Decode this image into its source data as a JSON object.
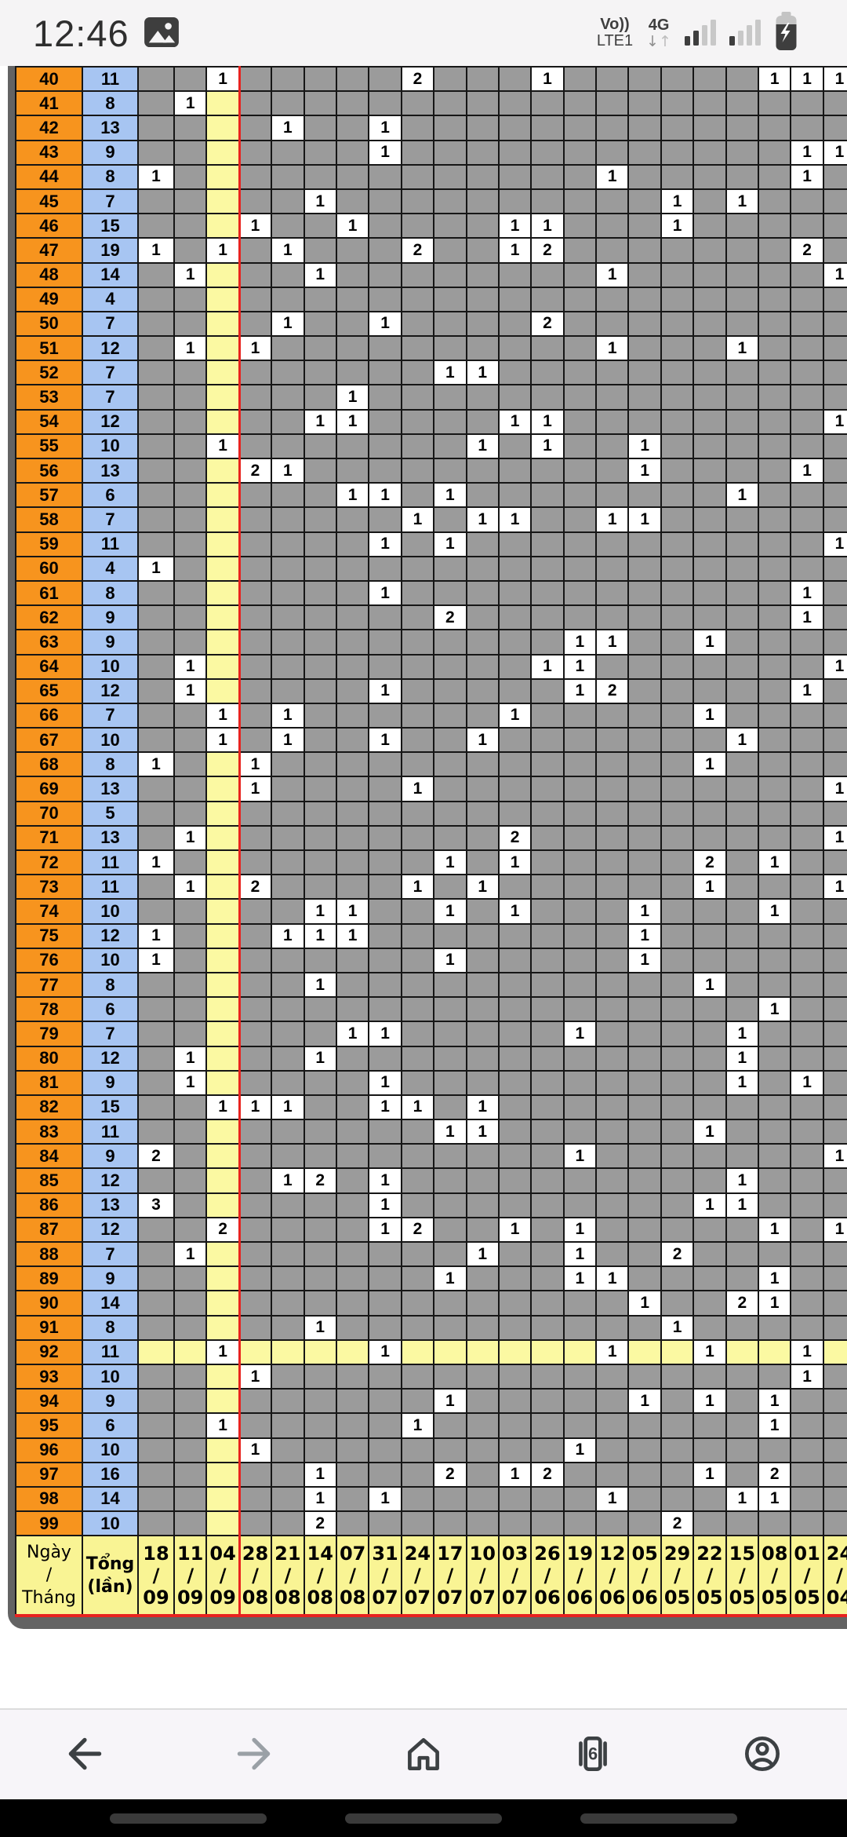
{
  "status_bar": {
    "time": "12:46",
    "carrier_line1": "Vo))",
    "carrier_line2": "LTE1",
    "network": "4G",
    "arrow_down": "↓",
    "arrow_up": "↑",
    "battery_state": "charging"
  },
  "table": {
    "highlight_row": "92",
    "highlight_col": 3,
    "colors": {
      "row_number_bg": "#f7941e",
      "total_bg": "#a7c5f2",
      "empty_bg": "#9b9b9b",
      "highlight_bg": "#fbf9a2",
      "value_bg": "#ffffff",
      "marker_line": "#e8231f",
      "frame": "#636363"
    },
    "rows": [
      {
        "n": "40",
        "total": "11",
        "cells": {
          "3": "1",
          "9": "2",
          "13": "1",
          "20": "1",
          "21": "1",
          "22": "1"
        }
      },
      {
        "n": "41",
        "total": "8",
        "cells": {
          "2": "1"
        }
      },
      {
        "n": "42",
        "total": "13",
        "cells": {
          "5": "1",
          "8": "1"
        }
      },
      {
        "n": "43",
        "total": "9",
        "cells": {
          "8": "1",
          "21": "1",
          "22": "1"
        }
      },
      {
        "n": "44",
        "total": "8",
        "cells": {
          "1": "1",
          "15": "1",
          "21": "1"
        }
      },
      {
        "n": "45",
        "total": "7",
        "cells": {
          "6": "1",
          "17": "1",
          "19": "1"
        }
      },
      {
        "n": "46",
        "total": "15",
        "cells": {
          "4": "1",
          "7": "1",
          "12": "1",
          "13": "1",
          "17": "1"
        }
      },
      {
        "n": "47",
        "total": "19",
        "cells": {
          "1": "1",
          "3": "1",
          "5": "1",
          "9": "2",
          "12": "1",
          "13": "2",
          "21": "2"
        }
      },
      {
        "n": "48",
        "total": "14",
        "cells": {
          "2": "1",
          "6": "1",
          "15": "1",
          "22": "1"
        }
      },
      {
        "n": "49",
        "total": "4",
        "cells": {}
      },
      {
        "n": "50",
        "total": "7",
        "cells": {
          "5": "1",
          "8": "1",
          "13": "2"
        }
      },
      {
        "n": "51",
        "total": "12",
        "cells": {
          "2": "1",
          "4": "1",
          "15": "1",
          "19": "1"
        }
      },
      {
        "n": "52",
        "total": "7",
        "cells": {
          "10": "1",
          "11": "1"
        }
      },
      {
        "n": "53",
        "total": "7",
        "cells": {
          "7": "1"
        }
      },
      {
        "n": "54",
        "total": "12",
        "cells": {
          "6": "1",
          "7": "1",
          "12": "1",
          "13": "1",
          "22": "1"
        }
      },
      {
        "n": "55",
        "total": "10",
        "cells": {
          "3": "1",
          "11": "1",
          "13": "1",
          "16": "1"
        }
      },
      {
        "n": "56",
        "total": "13",
        "cells": {
          "4": "2",
          "5": "1",
          "16": "1",
          "21": "1"
        }
      },
      {
        "n": "57",
        "total": "6",
        "cells": {
          "7": "1",
          "8": "1",
          "10": "1",
          "19": "1"
        }
      },
      {
        "n": "58",
        "total": "7",
        "cells": {
          "9": "1",
          "11": "1",
          "12": "1",
          "15": "1",
          "16": "1"
        }
      },
      {
        "n": "59",
        "total": "11",
        "cells": {
          "8": "1",
          "10": "1",
          "22": "1"
        }
      },
      {
        "n": "60",
        "total": "4",
        "cells": {
          "1": "1"
        }
      },
      {
        "n": "61",
        "total": "8",
        "cells": {
          "8": "1",
          "21": "1"
        }
      },
      {
        "n": "62",
        "total": "9",
        "cells": {
          "10": "2",
          "21": "1"
        }
      },
      {
        "n": "63",
        "total": "9",
        "cells": {
          "14": "1",
          "15": "1",
          "18": "1"
        }
      },
      {
        "n": "64",
        "total": "10",
        "cells": {
          "2": "1",
          "13": "1",
          "14": "1",
          "22": "1"
        }
      },
      {
        "n": "65",
        "total": "12",
        "cells": {
          "2": "1",
          "8": "1",
          "14": "1",
          "15": "2",
          "21": "1"
        }
      },
      {
        "n": "66",
        "total": "7",
        "cells": {
          "3": "1",
          "5": "1",
          "12": "1",
          "18": "1"
        }
      },
      {
        "n": "67",
        "total": "10",
        "cells": {
          "3": "1",
          "5": "1",
          "8": "1",
          "11": "1",
          "19": "1"
        }
      },
      {
        "n": "68",
        "total": "8",
        "cells": {
          "1": "1",
          "4": "1",
          "18": "1"
        }
      },
      {
        "n": "69",
        "total": "13",
        "cells": {
          "4": "1",
          "9": "1",
          "22": "1"
        }
      },
      {
        "n": "70",
        "total": "5",
        "cells": {}
      },
      {
        "n": "71",
        "total": "13",
        "cells": {
          "2": "1",
          "12": "2",
          "22": "1"
        }
      },
      {
        "n": "72",
        "total": "11",
        "cells": {
          "1": "1",
          "10": "1",
          "12": "1",
          "18": "2",
          "20": "1"
        }
      },
      {
        "n": "73",
        "total": "11",
        "cells": {
          "2": "1",
          "4": "2",
          "9": "1",
          "11": "1",
          "18": "1",
          "22": "1"
        }
      },
      {
        "n": "74",
        "total": "10",
        "cells": {
          "6": "1",
          "7": "1",
          "10": "1",
          "12": "1",
          "16": "1",
          "20": "1"
        }
      },
      {
        "n": "75",
        "total": "12",
        "cells": {
          "1": "1",
          "5": "1",
          "6": "1",
          "7": "1",
          "16": "1"
        }
      },
      {
        "n": "76",
        "total": "10",
        "cells": {
          "1": "1",
          "10": "1",
          "16": "1"
        }
      },
      {
        "n": "77",
        "total": "8",
        "cells": {
          "6": "1",
          "18": "1"
        }
      },
      {
        "n": "78",
        "total": "6",
        "cells": {
          "20": "1"
        }
      },
      {
        "n": "79",
        "total": "7",
        "cells": {
          "7": "1",
          "8": "1",
          "14": "1",
          "19": "1"
        }
      },
      {
        "n": "80",
        "total": "12",
        "cells": {
          "2": "1",
          "6": "1",
          "19": "1"
        }
      },
      {
        "n": "81",
        "total": "9",
        "cells": {
          "2": "1",
          "8": "1",
          "19": "1",
          "21": "1"
        }
      },
      {
        "n": "82",
        "total": "15",
        "cells": {
          "3": "1",
          "4": "1",
          "5": "1",
          "8": "1",
          "9": "1",
          "11": "1"
        }
      },
      {
        "n": "83",
        "total": "11",
        "cells": {
          "10": "1",
          "11": "1",
          "18": "1"
        }
      },
      {
        "n": "84",
        "total": "9",
        "cells": {
          "1": "2",
          "14": "1",
          "22": "1"
        }
      },
      {
        "n": "85",
        "total": "12",
        "cells": {
          "5": "1",
          "6": "2",
          "8": "1",
          "19": "1"
        }
      },
      {
        "n": "86",
        "total": "13",
        "cells": {
          "1": "3",
          "8": "1",
          "18": "1",
          "19": "1"
        }
      },
      {
        "n": "87",
        "total": "12",
        "cells": {
          "3": "2",
          "8": "1",
          "9": "2",
          "12": "1",
          "14": "1",
          "20": "1",
          "22": "1"
        }
      },
      {
        "n": "88",
        "total": "7",
        "cells": {
          "2": "1",
          "11": "1",
          "14": "1",
          "17": "2"
        }
      },
      {
        "n": "89",
        "total": "9",
        "cells": {
          "10": "1",
          "14": "1",
          "15": "1",
          "20": "1"
        }
      },
      {
        "n": "90",
        "total": "14",
        "cells": {
          "16": "1",
          "19": "2",
          "20": "1"
        }
      },
      {
        "n": "91",
        "total": "8",
        "cells": {
          "6": "1",
          "17": "1"
        }
      },
      {
        "n": "92",
        "total": "11",
        "cells": {
          "3": "1",
          "8": "1",
          "15": "1",
          "18": "1",
          "21": "1"
        }
      },
      {
        "n": "93",
        "total": "10",
        "cells": {
          "4": "1",
          "21": "1"
        }
      },
      {
        "n": "94",
        "total": "9",
        "cells": {
          "10": "1",
          "16": "1",
          "18": "1",
          "20": "1"
        }
      },
      {
        "n": "95",
        "total": "6",
        "cells": {
          "3": "1",
          "9": "1",
          "20": "1"
        }
      },
      {
        "n": "96",
        "total": "10",
        "cells": {
          "4": "1",
          "14": "1"
        }
      },
      {
        "n": "97",
        "total": "16",
        "cells": {
          "6": "1",
          "10": "2",
          "12": "1",
          "13": "2",
          "18": "1",
          "20": "2"
        }
      },
      {
        "n": "98",
        "total": "14",
        "cells": {
          "6": "1",
          "8": "1",
          "15": "1",
          "19": "1",
          "20": "1"
        }
      },
      {
        "n": "99",
        "total": "10",
        "cells": {
          "6": "2",
          "17": "2"
        }
      }
    ]
  },
  "footer": {
    "corner_lines": [
      "Ngày",
      "/",
      "Tháng"
    ],
    "total_lines": [
      "Tổng",
      "(lần)"
    ],
    "dates": [
      "18/09",
      "11/09",
      "04/09",
      "28/08",
      "21/08",
      "14/08",
      "07/08",
      "31/07",
      "24/07",
      "17/07",
      "10/07",
      "03/07",
      "26/06",
      "19/06",
      "12/06",
      "05/06",
      "29/05",
      "22/05",
      "15/05",
      "08/05",
      "01/05",
      "24/04"
    ]
  },
  "toolbar": {
    "tab_count": "6"
  }
}
